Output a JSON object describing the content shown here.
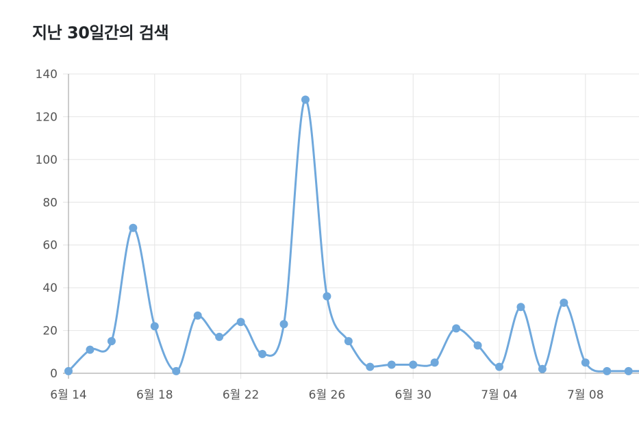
{
  "title": "지난 30일간의 검색",
  "chart_data": {
    "type": "line",
    "title": "지난 30일간의 검색",
    "xlabel": "",
    "ylabel": "",
    "ylim": [
      0,
      140
    ],
    "yticks": [
      "0",
      "20",
      "40",
      "60",
      "80",
      "100",
      "120",
      "140"
    ],
    "xticks": [
      "6월 14",
      "6월 18",
      "6월 22",
      "6월 26",
      "6월 30",
      "7월 04",
      "7월 08"
    ],
    "grid": true,
    "smooth": true,
    "line_color": "#6fa8dc",
    "point_color": "#6fa8dc",
    "series": [
      {
        "dates": [
          "6월 14",
          "6월 15",
          "6월 16",
          "6월 17",
          "6월 18",
          "6월 19",
          "6월 20",
          "6월 21",
          "6월 22",
          "6월 23",
          "6월 24",
          "6월 25",
          "6월 26",
          "6월 27",
          "6월 28",
          "6월 29",
          "6월 30",
          "7월 01",
          "7월 02",
          "7월 03",
          "7월 04",
          "7월 05",
          "7월 06",
          "7월 07",
          "7월 08",
          "7월 09",
          "7월 10",
          "7월 11"
        ],
        "values": [
          1,
          11,
          15,
          68,
          22,
          1,
          27,
          17,
          24,
          9,
          23,
          128,
          36,
          15,
          3,
          4,
          4,
          5,
          21,
          13,
          3,
          31,
          2,
          33,
          5,
          1,
          1,
          1
        ]
      }
    ]
  }
}
